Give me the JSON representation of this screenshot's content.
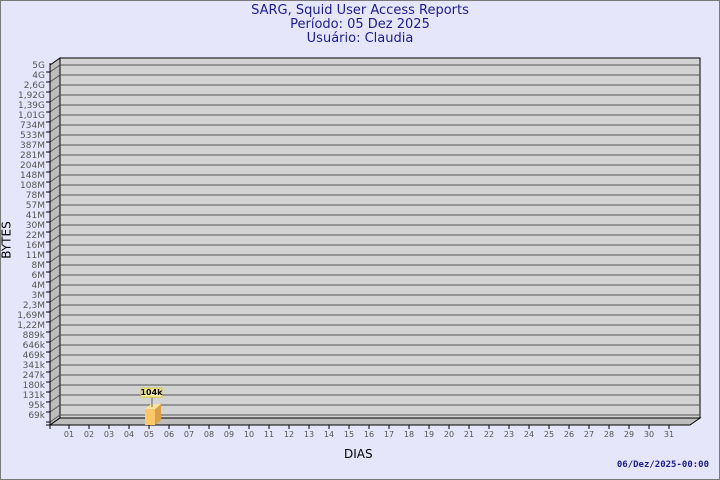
{
  "header": {
    "title": "SARG, Squid User Access Reports",
    "period": "Período: 05 Dez 2025",
    "user": "Usuário: Claudia"
  },
  "footer": {
    "timestamp": "06/Dez/2025-00:00"
  },
  "chart_data": {
    "type": "bar",
    "xlabel": "DIAS",
    "ylabel": "BYTES",
    "scale": "log",
    "grid": true,
    "y_tick_labels": [
      "5G",
      "4G",
      "2,6G",
      "1,92G",
      "1,39G",
      "1,01G",
      "734M",
      "533M",
      "387M",
      "281M",
      "204M",
      "148M",
      "108M",
      "78M",
      "57M",
      "41M",
      "30M",
      "22M",
      "16M",
      "11M",
      "8M",
      "6M",
      "4M",
      "3M",
      "2,3M",
      "1,69M",
      "1,22M",
      "889k",
      "646k",
      "469k",
      "341k",
      "247k",
      "180k",
      "131k",
      "95k",
      "69k"
    ],
    "categories": [
      "01",
      "02",
      "03",
      "04",
      "05",
      "06",
      "07",
      "08",
      "09",
      "10",
      "11",
      "12",
      "13",
      "14",
      "15",
      "16",
      "17",
      "18",
      "19",
      "20",
      "21",
      "22",
      "23",
      "24",
      "25",
      "26",
      "27",
      "28",
      "29",
      "30",
      "31"
    ],
    "series": [
      {
        "values": [
          null,
          null,
          null,
          null,
          104000,
          null,
          null,
          null,
          null,
          null,
          null,
          null,
          null,
          null,
          null,
          null,
          null,
          null,
          null,
          null,
          null,
          null,
          null,
          null,
          null,
          null,
          null,
          null,
          null,
          null,
          null
        ],
        "data_labels": {
          "05": "104k"
        }
      }
    ],
    "colors": {
      "bar_front": "#ffc66a",
      "bar_side": "#d9a04a",
      "bar_top": "#ffe29a",
      "plot_bg": "#d3d3d3",
      "label_bg": "#f3eca0"
    }
  }
}
